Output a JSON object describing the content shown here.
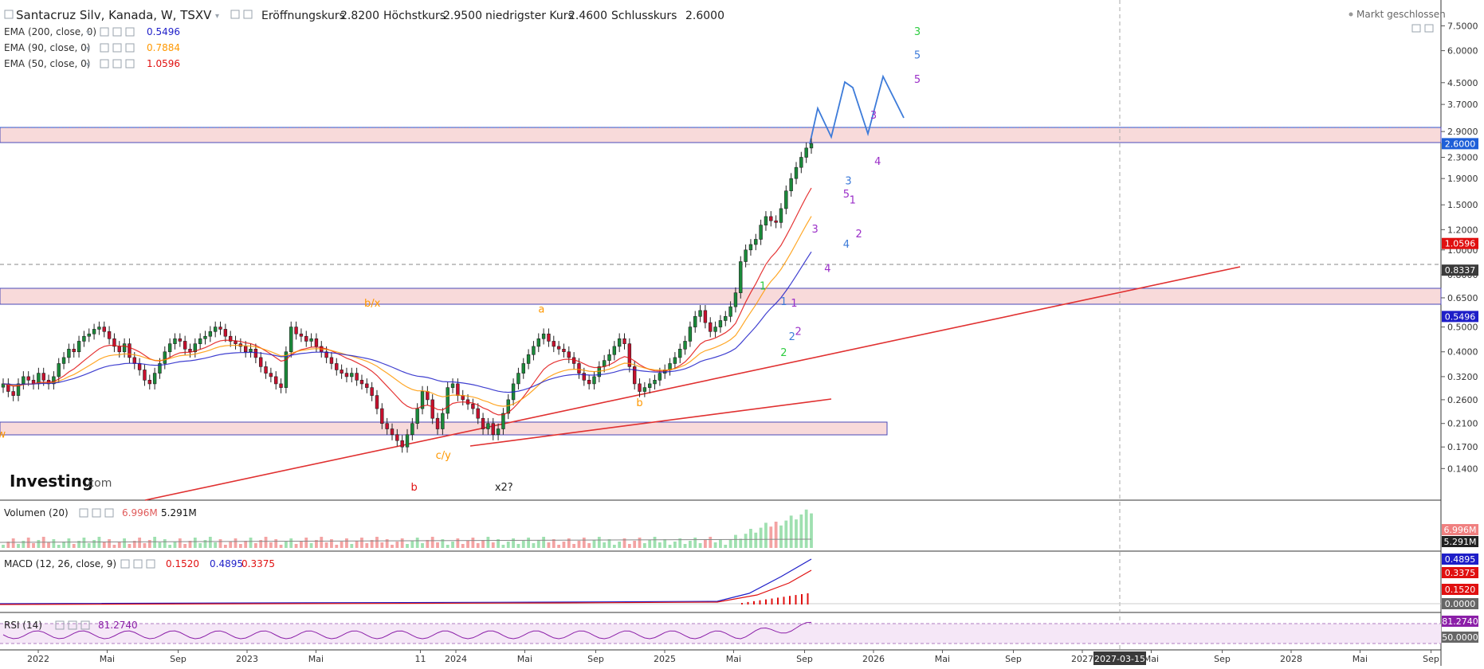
{
  "header": {
    "title": "Santacruz Silv, Kanada, W, TSXV",
    "open_label": "Eröffnungskurs",
    "open_value": "2.8200",
    "high_label": "Höchstkurs",
    "high_value": "2.9500",
    "low_label": "niedrigster Kurs",
    "low_value": "2.4600",
    "close_label": "Schlusskurs",
    "close_value": "2.6000",
    "market_status": "Markt geschlossen"
  },
  "indicators": [
    {
      "label": "EMA (200, close, 0)",
      "value": "0.5496",
      "color": "#1e1ec8"
    },
    {
      "label": "EMA (90, close, 0)",
      "value": "0.7884",
      "color": "#ff9800"
    },
    {
      "label": "EMA (50, close, 0)",
      "value": "1.0596",
      "color": "#e01010"
    }
  ],
  "brand": {
    "logo": "Investing",
    "suffix": ".com"
  },
  "volume_legend": {
    "label": "Volumen (20)",
    "value1": "6.996M",
    "value2": "5.291M"
  },
  "macd_legend": {
    "label": "MACD (12, 26, close, 9)",
    "v1": "0.1520",
    "v2": "0.4895",
    "v3": "0.3375"
  },
  "rsi_legend": {
    "label": "RSI (14)",
    "value": "81.2740"
  },
  "price_badges": [
    {
      "value": "2.6000",
      "price": 2.6,
      "color": "#1e5fd8"
    },
    {
      "value": "1.0596",
      "price": 1.0596,
      "color": "#e01010"
    },
    {
      "value": "0.8337",
      "price": 0.8337,
      "color": "#3a3a3a"
    },
    {
      "value": "0.5496",
      "price": 0.5496,
      "color": "#1e1ec8"
    }
  ],
  "volume_badges": [
    {
      "value": "6.996M",
      "color": "#f08080"
    },
    {
      "value": "5.291M",
      "color": "#222222"
    }
  ],
  "macd_badges": [
    {
      "value": "0.4895",
      "color": "#1e1ec8"
    },
    {
      "value": "0.3375",
      "color": "#e01010"
    },
    {
      "value": "0.1520",
      "color": "#e01010"
    },
    {
      "value": "0.0000",
      "color": "#666666"
    }
  ],
  "rsi_badges": [
    {
      "value": "81.2740",
      "color": "#8b1fa8"
    },
    {
      "value": "50.0000",
      "color": "#666666"
    }
  ],
  "crosshair_date": "2027-03-15",
  "chart_data": {
    "type": "candlestick",
    "scale": "log",
    "ylim": [
      0.11,
      8.2
    ],
    "y_ticks": [
      0.14,
      0.17,
      0.21,
      0.26,
      0.32,
      0.4,
      0.5,
      0.65,
      0.8,
      1.0,
      1.2,
      1.5,
      1.9,
      2.3,
      2.9,
      3.7,
      4.5,
      6.0,
      7.5
    ],
    "y_tick_labels": [
      "0.1400",
      "0.1700",
      "0.2100",
      "0.2600",
      "0.3200",
      "0.4000",
      "0.5000",
      "0.6500",
      "0.8000",
      "1.0000",
      "1.2000",
      "1.5000",
      "1.9000",
      "2.3000",
      "2.9000",
      "3.7000",
      "4.5000",
      "6.0000",
      "7.5000"
    ],
    "x_ticks": [
      {
        "label": "2022",
        "t": 2022.0
      },
      {
        "label": "Mai",
        "t": 2022.33
      },
      {
        "label": "Sep",
        "t": 2022.67
      },
      {
        "label": "2023",
        "t": 2023.0
      },
      {
        "label": "Mai",
        "t": 2023.33
      },
      {
        "label": "11",
        "t": 2023.83
      },
      {
        "label": "2024",
        "t": 2024.0
      },
      {
        "label": "Mai",
        "t": 2024.33
      },
      {
        "label": "Sep",
        "t": 2024.67
      },
      {
        "label": "2025",
        "t": 2025.0
      },
      {
        "label": "Mai",
        "t": 2025.33
      },
      {
        "label": "Sep",
        "t": 2025.67
      },
      {
        "label": "2026",
        "t": 2026.0
      },
      {
        "label": "Mai",
        "t": 2026.33
      },
      {
        "label": "Sep",
        "t": 2026.67
      },
      {
        "label": "2027",
        "t": 2027.0
      },
      {
        "label": "Mai",
        "t": 2027.33
      },
      {
        "label": "Sep",
        "t": 2027.67
      },
      {
        "label": "2028",
        "t": 2028.0
      },
      {
        "label": "Mai",
        "t": 2028.33
      },
      {
        "label": "Sep",
        "t": 2028.67
      }
    ],
    "candles_close": [
      0.3,
      0.28,
      0.27,
      0.3,
      0.32,
      0.31,
      0.3,
      0.33,
      0.31,
      0.3,
      0.32,
      0.36,
      0.38,
      0.41,
      0.4,
      0.44,
      0.46,
      0.47,
      0.49,
      0.5,
      0.48,
      0.45,
      0.42,
      0.4,
      0.43,
      0.38,
      0.36,
      0.34,
      0.31,
      0.3,
      0.33,
      0.36,
      0.4,
      0.43,
      0.45,
      0.44,
      0.41,
      0.4,
      0.43,
      0.45,
      0.46,
      0.48,
      0.5,
      0.49,
      0.46,
      0.44,
      0.43,
      0.42,
      0.4,
      0.41,
      0.38,
      0.35,
      0.33,
      0.32,
      0.3,
      0.29,
      0.4,
      0.5,
      0.47,
      0.46,
      0.44,
      0.45,
      0.42,
      0.4,
      0.38,
      0.36,
      0.34,
      0.33,
      0.32,
      0.33,
      0.31,
      0.3,
      0.29,
      0.27,
      0.24,
      0.21,
      0.2,
      0.19,
      0.18,
      0.17,
      0.19,
      0.21,
      0.24,
      0.28,
      0.26,
      0.22,
      0.2,
      0.23,
      0.29,
      0.3,
      0.27,
      0.26,
      0.25,
      0.24,
      0.22,
      0.2,
      0.21,
      0.19,
      0.2,
      0.23,
      0.26,
      0.3,
      0.33,
      0.36,
      0.39,
      0.42,
      0.45,
      0.47,
      0.44,
      0.42,
      0.41,
      0.4,
      0.38,
      0.36,
      0.33,
      0.31,
      0.3,
      0.32,
      0.35,
      0.37,
      0.39,
      0.42,
      0.45,
      0.43,
      0.35,
      0.3,
      0.28,
      0.29,
      0.3,
      0.31,
      0.33,
      0.34,
      0.36,
      0.38,
      0.41,
      0.44,
      0.5,
      0.55,
      0.58,
      0.52,
      0.48,
      0.5,
      0.53,
      0.55,
      0.6,
      0.68,
      0.9,
      1.0,
      1.05,
      1.1,
      1.25,
      1.35,
      1.3,
      1.28,
      1.45,
      1.7,
      1.9,
      2.1,
      2.3,
      2.5,
      2.6
    ],
    "wave_labels": [
      {
        "text": "a/w",
        "color": "#ff9800",
        "t": 2021.8,
        "p": 0.185
      },
      {
        "text": "b/x",
        "color": "#ff9800",
        "t": 2023.6,
        "p": 0.6
      },
      {
        "text": "b",
        "color": "#e01010",
        "t": 2023.8,
        "p": 0.115
      },
      {
        "text": "c/y",
        "color": "#ff9800",
        "t": 2023.94,
        "p": 0.153
      },
      {
        "text": "x2?",
        "color": "#222222",
        "t": 2024.23,
        "p": 0.115
      },
      {
        "text": "a",
        "color": "#ff9800",
        "t": 2024.41,
        "p": 0.57
      },
      {
        "text": "b",
        "color": "#ff9800",
        "t": 2024.88,
        "p": 0.245
      },
      {
        "text": "1",
        "color": "#2ecc40",
        "t": 2025.47,
        "p": 0.7
      },
      {
        "text": "1",
        "color": "#3d7bd9",
        "t": 2025.57,
        "p": 0.61
      },
      {
        "text": "1",
        "color": "#9b2fc8",
        "t": 2025.62,
        "p": 0.6
      },
      {
        "text": "2",
        "color": "#3d7bd9",
        "t": 2025.61,
        "p": 0.445
      },
      {
        "text": "2",
        "color": "#9b2fc8",
        "t": 2025.64,
        "p": 0.465
      },
      {
        "text": "2",
        "color": "#2ecc40",
        "t": 2025.57,
        "p": 0.385
      },
      {
        "text": "3",
        "color": "#9b2fc8",
        "t": 2025.72,
        "p": 1.17
      },
      {
        "text": "4",
        "color": "#9b2fc8",
        "t": 2025.78,
        "p": 0.82
      },
      {
        "text": "3",
        "color": "#3d7bd9",
        "t": 2025.88,
        "p": 1.8
      },
      {
        "text": "5",
        "color": "#9b2fc8",
        "t": 2025.87,
        "p": 1.6
      },
      {
        "text": "1",
        "color": "#9b2fc8",
        "t": 2025.9,
        "p": 1.52
      },
      {
        "text": "4",
        "color": "#3d7bd9",
        "t": 2025.87,
        "p": 1.02
      },
      {
        "text": "2",
        "color": "#9b2fc8",
        "t": 2025.93,
        "p": 1.12
      },
      {
        "text": "3",
        "color": "#9b2fc8",
        "t": 2026.0,
        "p": 3.25
      },
      {
        "text": "4",
        "color": "#9b2fc8",
        "t": 2026.02,
        "p": 2.15
      },
      {
        "text": "5",
        "color": "#9b2fc8",
        "t": 2026.21,
        "p": 4.5
      },
      {
        "text": "5",
        "color": "#3d7bd9",
        "t": 2026.21,
        "p": 5.6
      },
      {
        "text": "3",
        "color": "#2ecc40",
        "t": 2026.21,
        "p": 6.9
      }
    ],
    "ema50_color": "#e01010",
    "ema90_color": "#ff9800",
    "ema200_color": "#1e1ec8"
  }
}
